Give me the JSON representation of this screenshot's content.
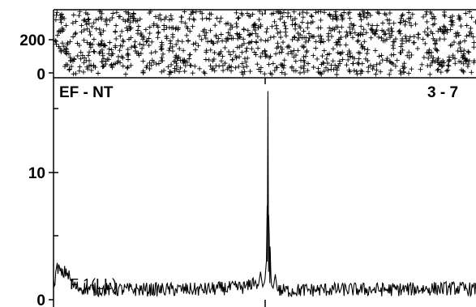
{
  "chart_data": [
    {
      "type": "scatter",
      "panel": "raster",
      "xlabel": "",
      "ylabel": "",
      "ylim": [
        0,
        290
      ],
      "y_ticks": [
        0,
        200
      ],
      "y_tick_labels": [
        "0",
        "200"
      ],
      "x_range": [
        -1,
        1
      ],
      "marker": "+",
      "density": "uniform, approximately 1100 trials-events across the full window"
    },
    {
      "type": "line",
      "panel": "histogram",
      "xlabel": "",
      "ylabel": "",
      "ylim": [
        0,
        17
      ],
      "y_ticks": [
        0,
        5,
        10,
        15
      ],
      "y_tick_labels": [
        "0",
        "",
        "10",
        ""
      ],
      "x_range": [
        -1,
        1
      ],
      "x_ticks": [
        -1,
        0,
        1
      ],
      "left_label": "EF - NT",
      "right_label": "3 - 7",
      "annotation": "F 1(LL)",
      "baseline_mean": 0.8,
      "series": [
        {
          "points": [
            [
              -1.0,
              1.2
            ],
            [
              -0.98,
              2.6
            ],
            [
              -0.96,
              1.9
            ],
            [
              -0.94,
              2.3
            ],
            [
              -0.92,
              1.6
            ],
            [
              -0.9,
              1.0
            ],
            [
              -0.85,
              0.9
            ],
            [
              -0.8,
              0.8
            ],
            [
              -0.6,
              0.8
            ],
            [
              -0.3,
              0.8
            ],
            [
              -0.08,
              1.0
            ],
            [
              -0.05,
              1.5
            ],
            [
              -0.03,
              1.1
            ],
            [
              -0.02,
              2.2
            ],
            [
              -0.01,
              1.0
            ],
            [
              0.0,
              1.4
            ],
            [
              0.01,
              3.5
            ],
            [
              0.015,
              16.4
            ],
            [
              0.02,
              2.5
            ],
            [
              0.025,
              4.5
            ],
            [
              0.03,
              1.2
            ],
            [
              0.04,
              0.9
            ],
            [
              0.05,
              2.0
            ],
            [
              0.06,
              0.7
            ],
            [
              0.3,
              0.8
            ],
            [
              0.6,
              0.8
            ],
            [
              0.9,
              0.9
            ],
            [
              1.0,
              0.8
            ]
          ]
        }
      ]
    }
  ]
}
